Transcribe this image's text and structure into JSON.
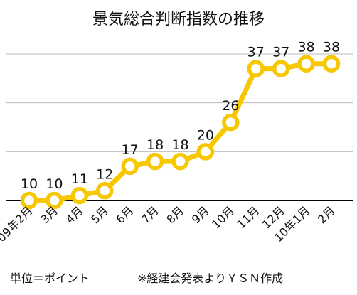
{
  "chart_data": {
    "type": "line",
    "title": "景気総合判断指数の推移",
    "categories": [
      "09年2月",
      "3月",
      "4月",
      "5月",
      "6月",
      "7月",
      "8月",
      "9月",
      "10月",
      "11月",
      "12月",
      "10年1月",
      "2月"
    ],
    "series": [
      {
        "values": [
          10,
          10,
          11,
          12,
          17,
          18,
          18,
          20,
          26,
          37,
          37,
          38,
          38
        ]
      }
    ],
    "ylim": [
      10,
      40
    ],
    "y_gridlines": [
      10,
      20,
      30,
      40
    ],
    "grid": true,
    "legend": false,
    "data_labels": true,
    "colors": {
      "line": "#f7c700",
      "marker_fill": "#ffffff",
      "marker_stroke": "#f7c700",
      "grid": "#bdbdbd",
      "baseline": "#000000"
    }
  },
  "footer": {
    "unit_note": "単位＝ポイント",
    "source_note": "※経建会発表よりＹＳＮ作成"
  }
}
